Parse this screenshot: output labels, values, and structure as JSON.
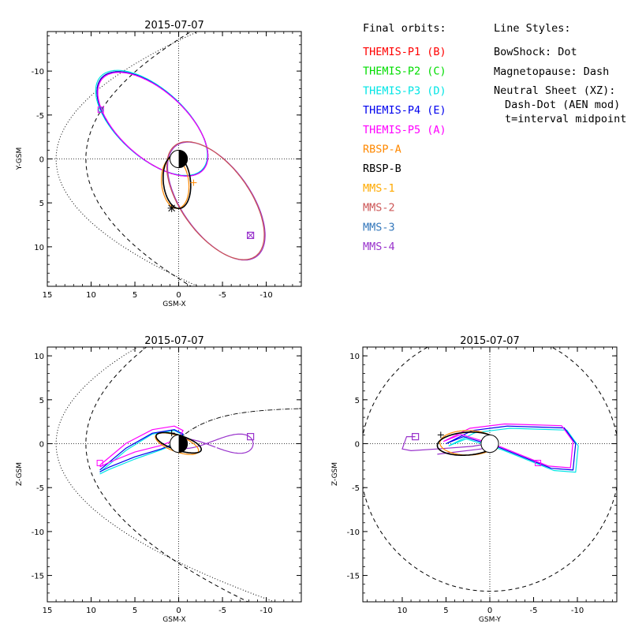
{
  "chart_data": [
    {
      "type": "line",
      "title": "2015-07-07",
      "xlabel": "GSM-X",
      "ylabel": "Y-GSM",
      "xlim": [
        15,
        -14
      ],
      "ylim": [
        14.5,
        -14.5
      ],
      "xticks": [
        "15",
        "10",
        "5",
        "0",
        "-5",
        "-10"
      ],
      "yticks": [
        "-10",
        "-5",
        "0",
        "5",
        "10"
      ],
      "series": [
        {
          "name": "THEMIS-P1 (B)",
          "color": "#ff0000",
          "center": [
            3.0,
            -4.0
          ],
          "radii": [
            7.8,
            3.8
          ],
          "angle_deg": -42,
          "marker": [
            8.9,
            -5.6
          ]
        },
        {
          "name": "THEMIS-P2 (C)",
          "color": "#00dd00",
          "center": [
            3.0,
            -4.0
          ],
          "radii": [
            7.8,
            3.8
          ],
          "angle_deg": -42,
          "marker": [
            8.9,
            -5.6
          ]
        },
        {
          "name": "THEMIS-P3 (D)",
          "color": "#00e5e5",
          "center": [
            3.1,
            -4.1
          ],
          "radii": [
            7.85,
            3.85
          ],
          "angle_deg": -42,
          "marker": [
            8.9,
            -5.6
          ]
        },
        {
          "name": "THEMIS-P4 (E)",
          "color": "#0000ee",
          "center": [
            3.0,
            -4.0
          ],
          "radii": [
            7.8,
            3.8
          ],
          "angle_deg": -42,
          "marker": [
            8.9,
            -5.6
          ]
        },
        {
          "name": "THEMIS-P5 (A)",
          "color": "#ff00ff",
          "center": [
            2.95,
            -3.95
          ],
          "radii": [
            7.75,
            3.78
          ],
          "angle_deg": -42,
          "marker": [
            8.9,
            -5.6
          ]
        },
        {
          "name": "MMS-4",
          "color": "#9933cc",
          "center": [
            -4.3,
            4.8
          ],
          "radii": [
            7.8,
            3.9
          ],
          "angle_deg": -54,
          "marker": [
            -8.2,
            8.7
          ]
        },
        {
          "name": "MMS-2",
          "color": "#cc5555",
          "center": [
            -4.2,
            4.75
          ],
          "radii": [
            7.8,
            3.9
          ],
          "angle_deg": -54,
          "marker": [
            -8.2,
            8.7
          ]
        },
        {
          "name": "RBSP-A",
          "color": "#ff8800",
          "center": [
            0.4,
            2.75
          ],
          "radii": [
            2.9,
            1.55
          ],
          "angle_deg": 96,
          "marker": [
            -1.7,
            2.7
          ]
        },
        {
          "name": "RBSP-B",
          "color": "#000000",
          "center": [
            0.2,
            2.6
          ],
          "radii": [
            3.05,
            1.55
          ],
          "angle_deg": 96,
          "marker": [
            0.8,
            5.6
          ]
        }
      ],
      "bowshock": "dot",
      "magnetopause": "dash"
    },
    {
      "type": "line",
      "title": "2015-07-07",
      "xlabel": "GSM-X",
      "ylabel": "Z-GSM",
      "xlim": [
        15,
        -14
      ],
      "ylim": [
        -18,
        11
      ],
      "xticks": [
        "15",
        "10",
        "5",
        "0",
        "-5",
        "-10"
      ],
      "yticks": [
        "10",
        "5",
        "0",
        "-5",
        "-10",
        "-15"
      ],
      "neutral_sheet": "dash-dot"
    },
    {
      "type": "line",
      "title": "2015-07-07",
      "xlabel": "GSM-Y",
      "ylabel": "Z-GSM",
      "xlim": [
        14.5,
        -14.5
      ],
      "ylim": [
        -18,
        11
      ],
      "xticks": [
        "10",
        "5",
        "0",
        "-5",
        "-10"
      ],
      "yticks": [
        "10",
        "5",
        "0",
        "-5",
        "-10",
        "-15"
      ]
    }
  ],
  "legend": {
    "header": "Final orbits:",
    "items": [
      {
        "label": "THEMIS-P1 (B)",
        "color": "#ff0000"
      },
      {
        "label": "THEMIS-P2 (C)",
        "color": "#00dd00"
      },
      {
        "label": "THEMIS-P3 (D)",
        "color": "#00e5e5"
      },
      {
        "label": "THEMIS-P4 (E)",
        "color": "#0000ee"
      },
      {
        "label": "THEMIS-P5 (A)",
        "color": "#ff00ff"
      },
      {
        "label": "RBSP-A",
        "color": "#ff8800"
      },
      {
        "label": "RBSP-B",
        "color": "#000000"
      },
      {
        "label": "MMS-1",
        "color": "#ffaa00"
      },
      {
        "label": "MMS-2",
        "color": "#cc5555"
      },
      {
        "label": "MMS-3",
        "color": "#3377bb"
      },
      {
        "label": "MMS-4",
        "color": "#9933cc"
      }
    ]
  },
  "line_styles": {
    "header": "Line Styles:",
    "lines": [
      "BowShock: Dot",
      "Magnetopause: Dash",
      "Neutral Sheet (XZ):",
      "Dash-Dot (AEN mod)",
      "t=interval midpoint"
    ]
  }
}
